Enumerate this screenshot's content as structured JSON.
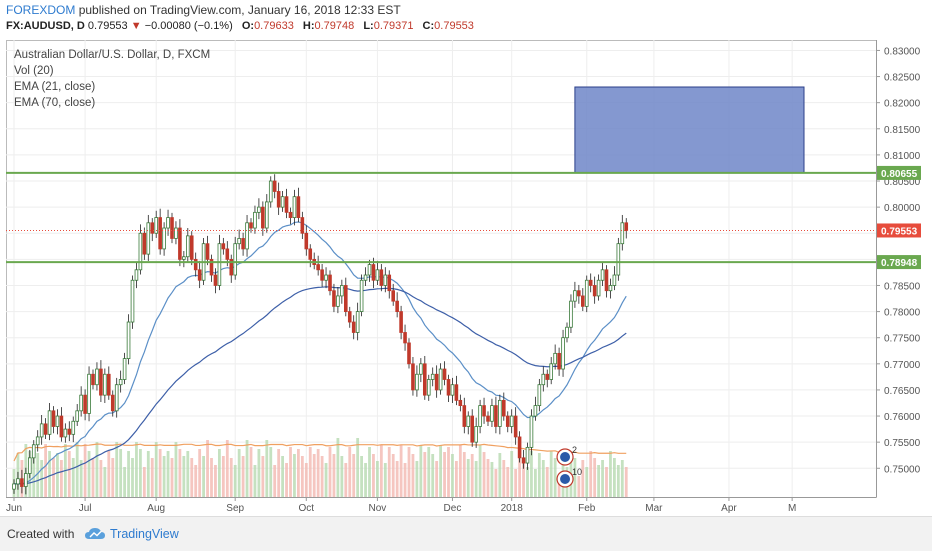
{
  "header": {
    "publisher": "FOREXDOM",
    "published_text": "published on TradingView.com, January 16, 2018 12:33 EST",
    "symbol": "FX:AUDUSD, D",
    "last": "0.79553",
    "change_arrow": "▼",
    "change": "−0.00080 (−0.1%)",
    "o_label": "O:",
    "o_value": "0.79633",
    "h_label": "H:",
    "h_value": "0.79748",
    "l_label": "L:",
    "l_value": "0.79371",
    "c_label": "C:",
    "c_value": "0.79553"
  },
  "legend": {
    "title": "Australian Dollar/U.S. Dollar, D, FXCM",
    "vol": "Vol (20)",
    "ema21": "EMA (21, close)",
    "ema70": "EMA (70, close)"
  },
  "footer": {
    "created_with": "Created with",
    "brand": "TradingView"
  },
  "colors": {
    "up": "#3a7a3a",
    "down": "#c0392b",
    "green_line": "#6aa84f",
    "ema21": "#5b8fc7",
    "ema70": "#3d5fa8",
    "vol_ma": "#f0a060",
    "zone_fill": "#6f86c8",
    "price_line": "#e74c3c"
  },
  "chart_data": {
    "type": "candlestick",
    "y_axis": {
      "min": 0.7445,
      "max": 0.832,
      "ticks": [
        "0.83000",
        "0.82500",
        "0.82000",
        "0.81500",
        "0.81000",
        "0.80500",
        "0.80000",
        "0.79500",
        "0.79000",
        "0.78500",
        "0.78000",
        "0.77500",
        "0.77000",
        "0.76500",
        "0.76000",
        "0.75500",
        "0.75000"
      ],
      "tick_values": [
        0.83,
        0.825,
        0.82,
        0.815,
        0.81,
        0.805,
        0.8,
        0.795,
        0.79,
        0.785,
        0.78,
        0.775,
        0.77,
        0.765,
        0.76,
        0.755,
        0.75
      ]
    },
    "x_axis": {
      "labels": [
        "Jun",
        "Jul",
        "Aug",
        "Sep",
        "Oct",
        "Nov",
        "Dec",
        "2018",
        "Feb",
        "Mar",
        "Apr",
        "M"
      ],
      "label_bar_index": [
        0,
        18,
        36,
        56,
        74,
        92,
        111,
        126,
        145,
        162,
        181,
        197
      ]
    },
    "horizontal_lines": [
      {
        "value": 0.80655,
        "label": "0.80655"
      },
      {
        "value": 0.78948,
        "label": "0.78948"
      }
    ],
    "last_price": {
      "value": 0.79553,
      "label": "0.79553"
    },
    "zone": {
      "from_bar": 142,
      "to_bar": 200,
      "y_low": 0.80655,
      "y_high": 0.823
    },
    "markers": [
      {
        "bar": 139,
        "text": "2"
      },
      {
        "bar": 139,
        "text": "10"
      }
    ],
    "closes": [
      0.747,
      0.748,
      0.7465,
      0.749,
      0.752,
      0.7545,
      0.756,
      0.7585,
      0.7565,
      0.761,
      0.758,
      0.76,
      0.756,
      0.7575,
      0.7565,
      0.759,
      0.761,
      0.764,
      0.7605,
      0.768,
      0.766,
      0.769,
      0.764,
      0.768,
      0.764,
      0.761,
      0.766,
      0.767,
      0.771,
      0.778,
      0.786,
      0.788,
      0.795,
      0.791,
      0.797,
      0.795,
      0.798,
      0.792,
      0.796,
      0.798,
      0.794,
      0.796,
      0.79,
      0.7905,
      0.7945,
      0.79,
      0.788,
      0.786,
      0.793,
      0.79,
      0.787,
      0.785,
      0.793,
      0.792,
      0.79,
      0.787,
      0.793,
      0.794,
      0.792,
      0.797,
      0.796,
      0.799,
      0.8,
      0.796,
      0.801,
      0.805,
      0.803,
      0.8,
      0.802,
      0.799,
      0.798,
      0.802,
      0.798,
      0.795,
      0.792,
      0.79,
      0.789,
      0.788,
      0.786,
      0.787,
      0.784,
      0.781,
      0.783,
      0.785,
      0.78,
      0.778,
      0.776,
      0.78,
      0.786,
      0.787,
      0.789,
      0.786,
      0.788,
      0.785,
      0.787,
      0.784,
      0.782,
      0.78,
      0.776,
      0.774,
      0.77,
      0.765,
      0.768,
      0.77,
      0.764,
      0.767,
      0.768,
      0.765,
      0.769,
      0.767,
      0.764,
      0.766,
      0.763,
      0.762,
      0.758,
      0.76,
      0.755,
      0.758,
      0.762,
      0.76,
      0.759,
      0.762,
      0.758,
      0.763,
      0.76,
      0.758,
      0.76,
      0.756,
      0.752,
      0.751,
      0.754,
      0.76,
      0.762,
      0.766,
      0.768,
      0.767,
      0.77,
      0.772,
      0.769,
      0.775,
      0.777,
      0.782,
      0.784,
      0.783,
      0.781,
      0.786,
      0.785,
      0.783,
      0.786,
      0.788,
      0.784,
      0.785,
      0.787,
      0.793,
      0.797,
      0.7955
    ],
    "series": [
      {
        "name": "EMA (21, close)"
      },
      {
        "name": "EMA (70, close)"
      },
      {
        "name": "Vol (20)"
      }
    ]
  }
}
